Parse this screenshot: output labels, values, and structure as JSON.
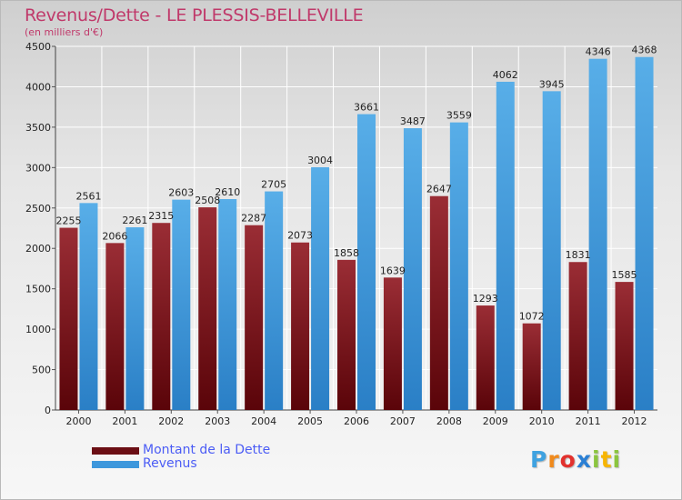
{
  "header": {
    "title": "Revenus/Dette - LE PLESSIS-BELLEVILLE",
    "subtitle": "(en milliers d'€)"
  },
  "colors": {
    "title": "#c0396a",
    "dette": "#7a1a24",
    "revenus": "#3d97dc",
    "legend_text": "#4b5cf5"
  },
  "legend": {
    "items": [
      {
        "label": "Montant de la Dette",
        "color": "#6b0e14"
      },
      {
        "label": "Revenus",
        "color": "#3d97dc"
      }
    ]
  },
  "logo": {
    "letters": [
      {
        "char": "P",
        "color": "#3fa2e0"
      },
      {
        "char": "r",
        "color": "#f08a1c"
      },
      {
        "char": "o",
        "color": "#e2312d"
      },
      {
        "char": "x",
        "color": "#2a7fd4"
      },
      {
        "char": "i",
        "color": "#8bc53f"
      },
      {
        "char": "t",
        "color": "#f7b500"
      },
      {
        "char": "i",
        "color": "#8bc53f"
      }
    ]
  },
  "chart_data": {
    "type": "bar",
    "categories": [
      "2000",
      "2001",
      "2002",
      "2003",
      "2004",
      "2005",
      "2006",
      "2007",
      "2008",
      "2009",
      "2010",
      "2011",
      "2012"
    ],
    "series": [
      {
        "name": "Montant de la Dette",
        "values": [
          2255,
          2066,
          2315,
          2508,
          2287,
          2073,
          1858,
          1639,
          2647,
          1293,
          1072,
          1831,
          1585
        ]
      },
      {
        "name": "Revenus",
        "values": [
          2561,
          2261,
          2603,
          2610,
          2705,
          3004,
          3661,
          3487,
          3559,
          4062,
          3945,
          4346,
          4368
        ]
      }
    ],
    "ylim": [
      0,
      4500
    ],
    "yticks": [
      0,
      500,
      1000,
      1500,
      2000,
      2500,
      3000,
      3500,
      4000,
      4500
    ],
    "grid": true,
    "legend_position": "bottom-left"
  }
}
